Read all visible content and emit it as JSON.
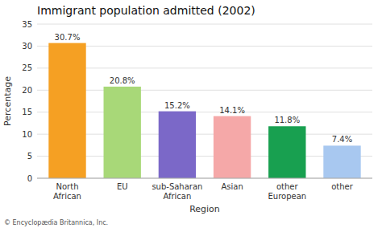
{
  "chart_data": {
    "type": "bar",
    "title": "Immigrant population admitted (2002)",
    "categories": [
      "North\nAfrican",
      "EU",
      "sub-Saharan\nAfrican",
      "Asian",
      "other\nEuropean",
      "other"
    ],
    "values": [
      30.7,
      20.8,
      15.2,
      14.1,
      11.8,
      7.4
    ],
    "value_labels": [
      "30.7%",
      "20.8%",
      "15.2%",
      "14.1%",
      "11.8%",
      "7.4%"
    ],
    "data_labels": true,
    "colors": [
      "#F5A023",
      "#A8D878",
      "#7B68C8",
      "#F5A8A8",
      "#18A050",
      "#A8C8F0"
    ],
    "xlabel": "Region",
    "ylabel": "Percentage",
    "ylim": [
      0,
      35
    ],
    "yticks": [
      0,
      5,
      10,
      15,
      20,
      25,
      30,
      35
    ],
    "grid": true,
    "annotations": [
      "© Encyclopædia Britannica, Inc."
    ]
  }
}
